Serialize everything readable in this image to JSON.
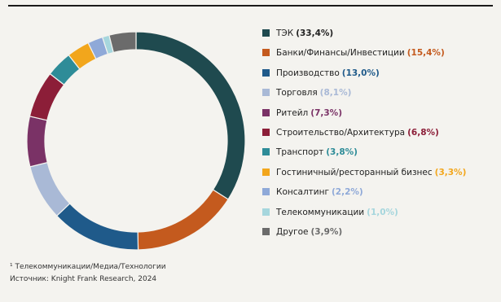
{
  "chart_data": {
    "type": "pie",
    "donut": true,
    "legend": "right",
    "slices": [
      {
        "label": "ТЭК",
        "value": 33.4,
        "value_text": "(33,4%)",
        "color": "#1f4a4f",
        "pct_color": "#222222"
      },
      {
        "label": "Банки/Финансы/Инвестиции",
        "value": 15.4,
        "value_text": "(15,4%)",
        "color": "#c45a1e",
        "pct_color": "#c45a1e"
      },
      {
        "label": "Производство",
        "value": 13.0,
        "value_text": "(13,0%)",
        "color": "#1f5a8a",
        "pct_color": "#1f5a8a"
      },
      {
        "label": "Торговля",
        "value": 8.1,
        "value_text": "(8,1%)",
        "color": "#a9b9d6",
        "pct_color": "#a9b9d6"
      },
      {
        "label": "Ритейл",
        "value": 7.3,
        "value_text": "(7,3%)",
        "color": "#7a3266",
        "pct_color": "#7a3266"
      },
      {
        "label": "Строительство/Архитектура",
        "value": 6.8,
        "value_text": "(6,8%)",
        "color": "#8c1e38",
        "pct_color": "#8c1e38"
      },
      {
        "label": "Транспорт",
        "value": 3.8,
        "value_text": "(3,8%)",
        "color": "#2e8c98",
        "pct_color": "#2e8c98"
      },
      {
        "label": "Гостиничный/ресторанный бизнес",
        "value": 3.3,
        "value_text": "(3,3%)",
        "color": "#f2a61c",
        "pct_color": "#f2a61c"
      },
      {
        "label": "Консалтинг",
        "value": 2.2,
        "value_text": "(2,2%)",
        "color": "#8fa9d8",
        "pct_color": "#8fa9d8"
      },
      {
        "label": "Телекоммуникации",
        "value": 1.0,
        "value_text": "(1,0%)",
        "color": "#a6d6dd",
        "pct_color": "#a6d6dd"
      },
      {
        "label": "Другое",
        "value": 3.9,
        "value_text": "(3,9%)",
        "color": "#6b6b6b",
        "pct_color": "#6b6b6b"
      }
    ]
  },
  "footnote": {
    "line1": "¹ Телекоммуникации/Медиа/Технологии",
    "line2": "Источник: Knight Frank Research, 2024"
  }
}
